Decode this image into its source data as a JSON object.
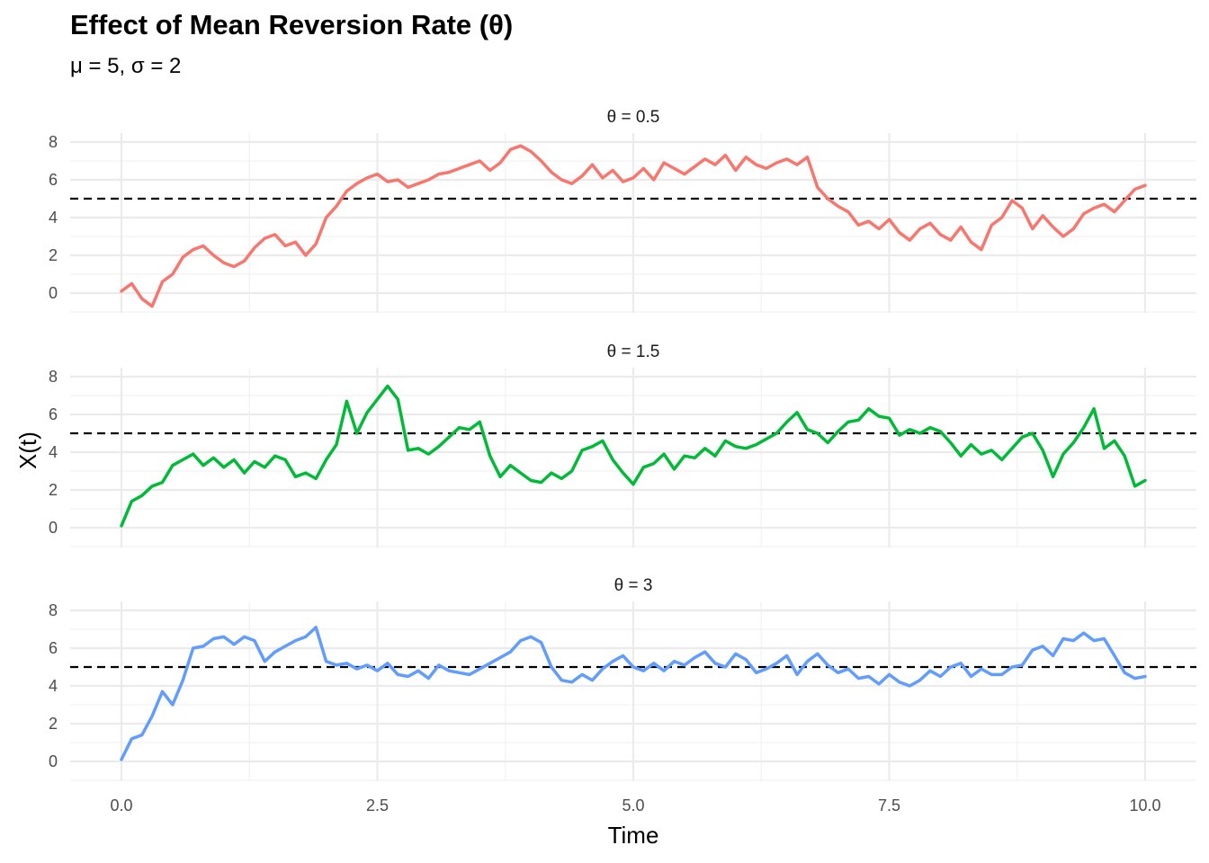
{
  "title": "Effect of Mean Reversion Rate (θ)",
  "subtitle": "μ = 5, σ = 2",
  "chart_data": {
    "type": "line",
    "title": "Effect of Mean Reversion Rate (θ)",
    "subtitle": "μ = 5, σ = 2",
    "xlabel": "Time",
    "ylabel": "X(t)",
    "xlim": [
      0,
      10
    ],
    "ylim": [
      -1,
      8.5
    ],
    "x_ticks": [
      0,
      2.5,
      5,
      7.5,
      10
    ],
    "x_tick_labels": [
      "0.0",
      "2.5",
      "5.0",
      "7.5",
      "10.0"
    ],
    "y_ticks": [
      0,
      2,
      4,
      6,
      8
    ],
    "y_tick_labels": [
      "0",
      "2",
      "4",
      "6",
      "8"
    ],
    "grid": true,
    "legend": "none",
    "reference_line": {
      "y": 5,
      "style": "dashed"
    },
    "panels": [
      {
        "label": "θ = 0.5",
        "color": "#F8766D",
        "x": [
          0,
          0.1,
          0.2,
          0.3,
          0.4,
          0.5,
          0.6,
          0.7,
          0.8,
          0.9,
          1.0,
          1.1,
          1.2,
          1.3,
          1.4,
          1.5,
          1.6,
          1.7,
          1.8,
          1.9,
          2.0,
          2.1,
          2.2,
          2.3,
          2.4,
          2.5,
          2.6,
          2.7,
          2.8,
          2.9,
          3.0,
          3.1,
          3.2,
          3.3,
          3.4,
          3.5,
          3.6,
          3.7,
          3.8,
          3.9,
          4.0,
          4.1,
          4.2,
          4.3,
          4.4,
          4.5,
          4.6,
          4.7,
          4.8,
          4.9,
          5.0,
          5.1,
          5.2,
          5.3,
          5.4,
          5.5,
          5.6,
          5.7,
          5.8,
          5.9,
          6.0,
          6.1,
          6.2,
          6.3,
          6.4,
          6.5,
          6.6,
          6.7,
          6.8,
          6.9,
          7.0,
          7.1,
          7.2,
          7.3,
          7.4,
          7.5,
          7.6,
          7.7,
          7.8,
          7.9,
          8.0,
          8.1,
          8.2,
          8.3,
          8.4,
          8.5,
          8.6,
          8.7,
          8.8,
          8.9,
          9.0,
          9.1,
          9.2,
          9.3,
          9.4,
          9.5,
          9.6,
          9.7,
          9.8,
          9.9,
          10.0
        ],
        "y": [
          0.1,
          0.5,
          -0.3,
          -0.7,
          0.6,
          1.0,
          1.9,
          2.3,
          2.5,
          2.0,
          1.6,
          1.4,
          1.7,
          2.4,
          2.9,
          3.1,
          2.5,
          2.7,
          2.0,
          2.6,
          4.0,
          4.6,
          5.4,
          5.8,
          6.1,
          6.3,
          5.9,
          6.0,
          5.6,
          5.8,
          6.0,
          6.3,
          6.4,
          6.6,
          6.8,
          7.0,
          6.5,
          6.9,
          7.6,
          7.8,
          7.5,
          7.0,
          6.4,
          6.0,
          5.8,
          6.2,
          6.8,
          6.1,
          6.5,
          5.9,
          6.1,
          6.6,
          6.0,
          6.9,
          6.6,
          6.3,
          6.7,
          7.1,
          6.8,
          7.3,
          6.5,
          7.2,
          6.8,
          6.6,
          6.9,
          7.1,
          6.8,
          7.2,
          5.6,
          5.0,
          4.6,
          4.3,
          3.6,
          3.8,
          3.4,
          3.9,
          3.2,
          2.8,
          3.4,
          3.7,
          3.1,
          2.8,
          3.5,
          2.7,
          2.3,
          3.6,
          4.0,
          4.9,
          4.5,
          3.4,
          4.1,
          3.5,
          3.0,
          3.4,
          4.2,
          4.5,
          4.7,
          4.3,
          4.9,
          5.5,
          5.7
        ]
      },
      {
        "label": "θ = 1.5",
        "color": "#00BA38",
        "x": [
          0,
          0.1,
          0.2,
          0.3,
          0.4,
          0.5,
          0.6,
          0.7,
          0.8,
          0.9,
          1.0,
          1.1,
          1.2,
          1.3,
          1.4,
          1.5,
          1.6,
          1.7,
          1.8,
          1.9,
          2.0,
          2.1,
          2.2,
          2.3,
          2.4,
          2.5,
          2.6,
          2.7,
          2.8,
          2.9,
          3.0,
          3.1,
          3.2,
          3.3,
          3.4,
          3.5,
          3.6,
          3.7,
          3.8,
          3.9,
          4.0,
          4.1,
          4.2,
          4.3,
          4.4,
          4.5,
          4.6,
          4.7,
          4.8,
          4.9,
          5.0,
          5.1,
          5.2,
          5.3,
          5.4,
          5.5,
          5.6,
          5.7,
          5.8,
          5.9,
          6.0,
          6.1,
          6.2,
          6.3,
          6.4,
          6.5,
          6.6,
          6.7,
          6.8,
          6.9,
          7.0,
          7.1,
          7.2,
          7.3,
          7.4,
          7.5,
          7.6,
          7.7,
          7.8,
          7.9,
          8.0,
          8.1,
          8.2,
          8.3,
          8.4,
          8.5,
          8.6,
          8.7,
          8.8,
          8.9,
          9.0,
          9.1,
          9.2,
          9.3,
          9.4,
          9.5,
          9.6,
          9.7,
          9.8,
          9.9,
          10.0
        ],
        "y": [
          0.1,
          1.4,
          1.7,
          2.2,
          2.4,
          3.3,
          3.6,
          3.9,
          3.3,
          3.7,
          3.2,
          3.6,
          2.9,
          3.5,
          3.2,
          3.8,
          3.6,
          2.7,
          2.9,
          2.6,
          3.6,
          4.4,
          6.7,
          5.0,
          6.1,
          6.8,
          7.5,
          6.8,
          4.1,
          4.2,
          3.9,
          4.3,
          4.8,
          5.3,
          5.2,
          5.6,
          3.8,
          2.7,
          3.3,
          2.9,
          2.5,
          2.4,
          2.9,
          2.6,
          3.0,
          4.1,
          4.3,
          4.6,
          3.6,
          2.9,
          2.3,
          3.2,
          3.4,
          3.9,
          3.1,
          3.8,
          3.7,
          4.2,
          3.8,
          4.6,
          4.3,
          4.2,
          4.4,
          4.7,
          5.0,
          5.6,
          6.1,
          5.2,
          5.0,
          4.5,
          5.1,
          5.6,
          5.7,
          6.3,
          5.9,
          5.8,
          4.9,
          5.2,
          5.0,
          5.3,
          5.1,
          4.5,
          3.8,
          4.4,
          3.9,
          4.1,
          3.6,
          4.2,
          4.8,
          5.0,
          4.1,
          2.7,
          3.9,
          4.5,
          5.3,
          6.3,
          4.2,
          4.6,
          3.8,
          2.2,
          2.5
        ]
      },
      {
        "label": "θ = 3",
        "color": "#619CFF",
        "x": [
          0,
          0.1,
          0.2,
          0.3,
          0.4,
          0.5,
          0.6,
          0.7,
          0.8,
          0.9,
          1.0,
          1.1,
          1.2,
          1.3,
          1.4,
          1.5,
          1.6,
          1.7,
          1.8,
          1.9,
          2.0,
          2.1,
          2.2,
          2.3,
          2.4,
          2.5,
          2.6,
          2.7,
          2.8,
          2.9,
          3.0,
          3.1,
          3.2,
          3.3,
          3.4,
          3.5,
          3.6,
          3.7,
          3.8,
          3.9,
          4.0,
          4.1,
          4.2,
          4.3,
          4.4,
          4.5,
          4.6,
          4.7,
          4.8,
          4.9,
          5.0,
          5.1,
          5.2,
          5.3,
          5.4,
          5.5,
          5.6,
          5.7,
          5.8,
          5.9,
          6.0,
          6.1,
          6.2,
          6.3,
          6.4,
          6.5,
          6.6,
          6.7,
          6.8,
          6.9,
          7.0,
          7.1,
          7.2,
          7.3,
          7.4,
          7.5,
          7.6,
          7.7,
          7.8,
          7.9,
          8.0,
          8.1,
          8.2,
          8.3,
          8.4,
          8.5,
          8.6,
          8.7,
          8.8,
          8.9,
          9.0,
          9.1,
          9.2,
          9.3,
          9.4,
          9.5,
          9.6,
          9.7,
          9.8,
          9.9,
          10.0
        ],
        "y": [
          0.1,
          1.2,
          1.4,
          2.4,
          3.7,
          3.0,
          4.3,
          6.0,
          6.1,
          6.5,
          6.6,
          6.2,
          6.6,
          6.4,
          5.3,
          5.8,
          6.1,
          6.4,
          6.6,
          7.1,
          5.3,
          5.1,
          5.2,
          4.9,
          5.1,
          4.8,
          5.2,
          4.6,
          4.5,
          4.8,
          4.4,
          5.1,
          4.8,
          4.7,
          4.6,
          4.9,
          5.2,
          5.5,
          5.8,
          6.4,
          6.6,
          6.3,
          5.0,
          4.3,
          4.2,
          4.6,
          4.3,
          4.9,
          5.3,
          5.6,
          5.0,
          4.8,
          5.2,
          4.8,
          5.3,
          5.1,
          5.5,
          5.8,
          5.2,
          5.0,
          5.7,
          5.4,
          4.7,
          4.9,
          5.2,
          5.6,
          4.6,
          5.3,
          5.7,
          5.1,
          4.7,
          4.9,
          4.4,
          4.5,
          4.1,
          4.6,
          4.2,
          4.0,
          4.3,
          4.8,
          4.5,
          5.0,
          5.2,
          4.5,
          4.9,
          4.6,
          4.6,
          5.0,
          5.1,
          5.9,
          6.1,
          5.6,
          6.5,
          6.4,
          6.8,
          6.4,
          6.5,
          5.6,
          4.7,
          4.4,
          4.5
        ]
      }
    ]
  }
}
